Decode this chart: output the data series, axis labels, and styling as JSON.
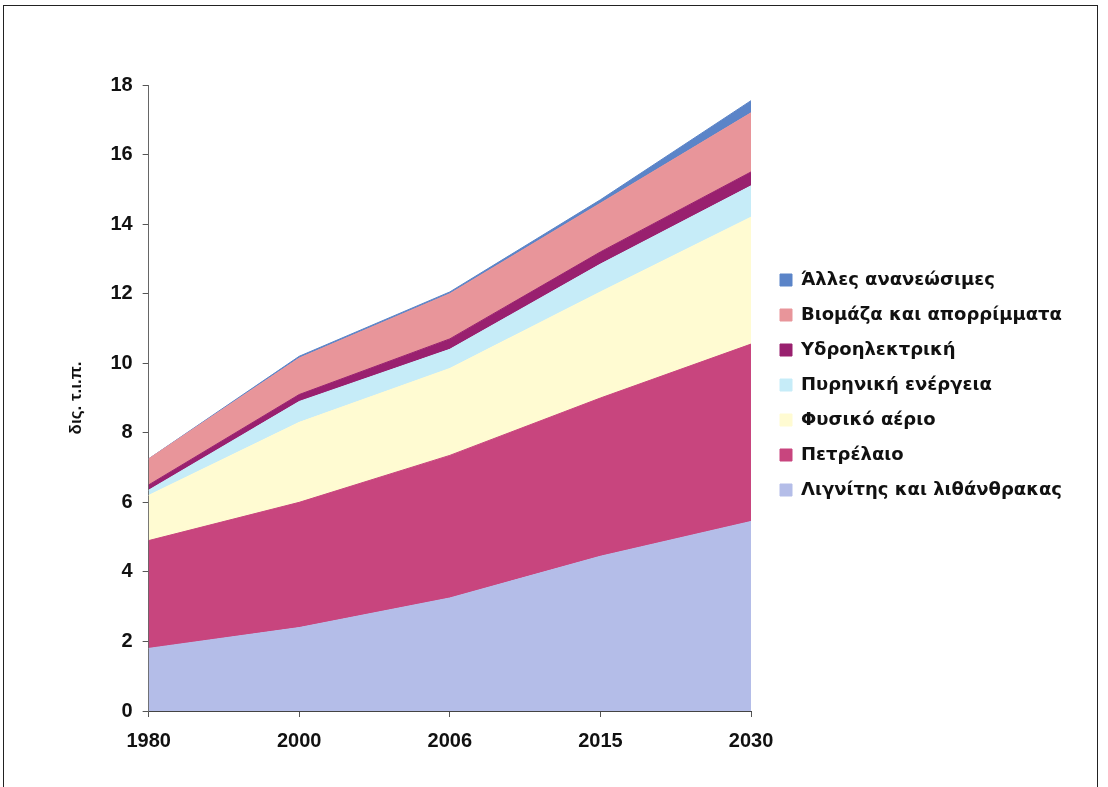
{
  "chart_data": {
    "type": "area",
    "stacked": true,
    "categories": [
      "1980",
      "2000",
      "2006",
      "2015",
      "2030"
    ],
    "ylabel": "δις. τ.ι.π.",
    "ylim": [
      0,
      18
    ],
    "yticks": [
      0,
      2,
      4,
      6,
      8,
      10,
      12,
      14,
      16,
      18
    ],
    "grid": false,
    "legend": "right",
    "marker": "none",
    "series": [
      {
        "name": "Λιγνίτης και λιθάνθρακας",
        "color": "#b4bde8",
        "values": [
          1.8,
          2.4,
          3.25,
          4.45,
          5.45
        ]
      },
      {
        "name": "Πετρέλαιο",
        "color": "#c8457e",
        "values": [
          3.1,
          3.6,
          4.1,
          4.55,
          5.1
        ]
      },
      {
        "name": "Φυσικό αέριο",
        "color": "#fffbd2",
        "values": [
          1.3,
          2.3,
          2.5,
          3.05,
          3.65
        ]
      },
      {
        "name": "Πυρηνική ενέργεια",
        "color": "#c6ecf8",
        "values": [
          0.15,
          0.6,
          0.55,
          0.8,
          0.9
        ]
      },
      {
        "name": "Υδροηλεκτρική",
        "color": "#99206f",
        "values": [
          0.15,
          0.2,
          0.3,
          0.35,
          0.4
        ]
      },
      {
        "name": "Βιομάζα και απορρίμματα",
        "color": "#e8959a",
        "values": [
          0.75,
          1.05,
          1.3,
          1.4,
          1.7
        ]
      },
      {
        "name": "Άλλες ανανεώσιμες",
        "color": "#5b84c8",
        "values": [
          0,
          0.05,
          0.05,
          0.1,
          0.35
        ]
      }
    ]
  }
}
